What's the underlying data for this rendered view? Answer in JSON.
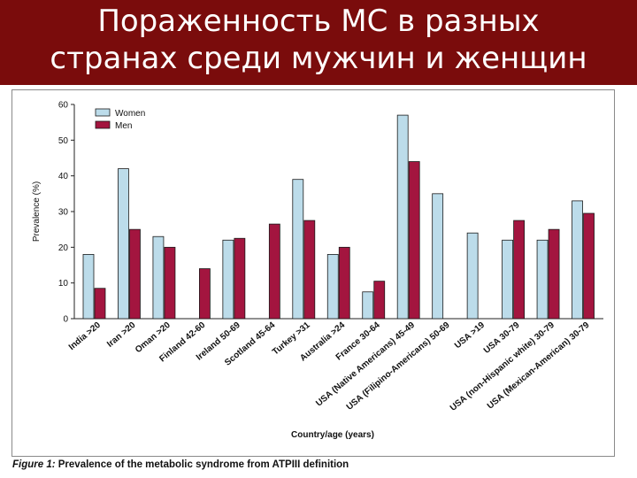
{
  "header": {
    "title_line1": "Пораженность МС в разных",
    "title_line2": "странах среди мужчин и женщин"
  },
  "caption": {
    "label": "Figure 1:",
    "text": " Prevalence of the metabolic syndrome from ATPIII definition"
  },
  "colors": {
    "header_bg": "#7a0c0c",
    "women": "#bcdcea",
    "men": "#a3153f"
  },
  "chart_data": {
    "type": "bar",
    "title": "",
    "xlabel": "Country/age (years)",
    "ylabel": "Prevalence (%)",
    "ylim": [
      0,
      60
    ],
    "yticks": [
      "0",
      "10",
      "20",
      "30",
      "40",
      "50",
      "60"
    ],
    "grid": false,
    "legend_position": "top-left",
    "categories": [
      "India >20",
      "Iran >20",
      "Oman >20",
      "Finland 42-60",
      "Ireland 50-69",
      "Scotland 45-64",
      "Turkey >31",
      "Australia >24",
      "France 30-64",
      "USA (Native Americans) 45-49",
      "USA (Filipino-Americans) 50-69",
      "USA >19",
      "USA 30-79",
      "USA (non-Hispanic white) 30-79",
      "USA (Mexican-American) 30-79"
    ],
    "series": [
      {
        "name": "Women",
        "color": "#bcdcea",
        "values": [
          18,
          42,
          23,
          null,
          22,
          null,
          39,
          18,
          7.5,
          57,
          35,
          24,
          22,
          22,
          33
        ]
      },
      {
        "name": "Men",
        "color": "#a3153f",
        "values": [
          8.5,
          25,
          20,
          14,
          22.5,
          26.5,
          27.5,
          20,
          10.5,
          44,
          null,
          null,
          27.5,
          25,
          29.5
        ]
      }
    ]
  }
}
